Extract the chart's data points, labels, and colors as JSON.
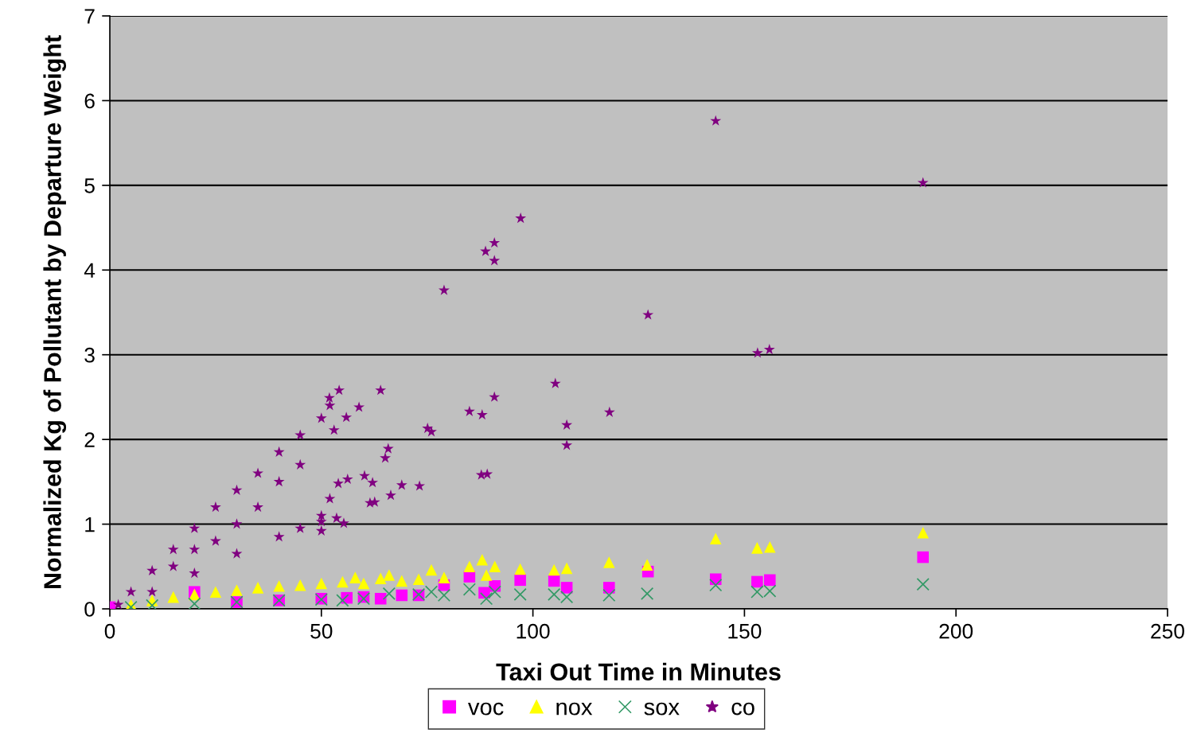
{
  "chart_data": {
    "type": "scatter",
    "xlabel": "Taxi Out Time in Minutes",
    "ylabel": "Normalized Kg of Pollutant by Departure Weight",
    "xlim": [
      0,
      250
    ],
    "xticks": [
      0,
      50,
      100,
      150,
      200,
      250
    ],
    "ylim": [
      0,
      7
    ],
    "yticks": [
      0,
      1,
      2,
      3,
      4,
      5,
      6,
      7
    ],
    "grid": "y",
    "legend": "bottom",
    "series": [
      {
        "name": "voc",
        "color": "#ff00ff",
        "marker": "square",
        "x": [
          0,
          5,
          10,
          15,
          20,
          30,
          40,
          50,
          56,
          60,
          64,
          69,
          73,
          79,
          85,
          88.5,
          91,
          97,
          105,
          108,
          118,
          127.2,
          143.2,
          153,
          156,
          192.2
        ],
        "values": [
          0.02,
          null,
          null,
          null,
          0.2,
          0.08,
          0.1,
          0.12,
          0.13,
          0.14,
          0.12,
          0.16,
          0.16,
          0.28,
          0.38,
          0.19,
          0.27,
          0.34,
          0.33,
          0.25,
          0.25,
          0.44,
          0.35,
          0.32,
          0.34,
          0.61
        ]
      },
      {
        "name": "nox",
        "color": "#ffff00",
        "marker": "triangle",
        "x": [
          5,
          10,
          15,
          20,
          25,
          30,
          35,
          40,
          45,
          50,
          55,
          58,
          60,
          64,
          66,
          69,
          73,
          76,
          79,
          85,
          88,
          89,
          91,
          97,
          105,
          108,
          118,
          127,
          143.2,
          153,
          156,
          192.2
        ],
        "values": [
          0.05,
          0.1,
          0.14,
          0.17,
          0.2,
          0.22,
          0.25,
          0.27,
          0.28,
          0.3,
          0.32,
          0.37,
          0.3,
          0.36,
          0.4,
          0.33,
          0.35,
          0.46,
          0.37,
          0.5,
          0.58,
          0.4,
          0.5,
          0.47,
          0.46,
          0.48,
          0.55,
          0.52,
          0.83,
          0.72,
          0.73,
          0.9
        ]
      },
      {
        "name": "sox",
        "color": "#339966",
        "marker": "cross",
        "x": [
          5,
          10,
          20,
          30,
          40,
          50,
          55,
          60,
          66,
          73,
          76,
          79,
          85,
          89,
          91,
          97,
          105,
          108,
          118,
          127,
          143.2,
          153,
          156,
          192.2
        ],
        "values": [
          0.02,
          0.04,
          0.06,
          0.08,
          0.1,
          0.11,
          0.1,
          0.12,
          0.18,
          0.17,
          0.2,
          0.16,
          0.23,
          0.12,
          0.2,
          0.17,
          0.17,
          0.14,
          0.16,
          0.18,
          0.28,
          0.2,
          0.21,
          0.29
        ]
      },
      {
        "name": "co",
        "color": "#800080",
        "marker": "star",
        "x": [
          2,
          5,
          10,
          15,
          20,
          25,
          30,
          35,
          40,
          45,
          50,
          52,
          10,
          20,
          30,
          40,
          45,
          50,
          52,
          15,
          20,
          25,
          30,
          35,
          40,
          45,
          50.0,
          50.0,
          53.6,
          55.3,
          54.0,
          56.2,
          53.0,
          51.9,
          54.2,
          55.9,
          58.9,
          60.2,
          62.1,
          61.5,
          62.6,
          66.4,
          69.0,
          73.2,
          65.1,
          65.8,
          64.0,
          75.1,
          76.0,
          79.0,
          85.0,
          87.8,
          88.0,
          88.8,
          89.2,
          90.9,
          90.9,
          90.9,
          97.1,
          105.3,
          108.0,
          108.0,
          118.1,
          127.2,
          143.2,
          153.1,
          155.9,
          192.2
        ],
        "values": [
          0.05,
          0.2,
          0.45,
          0.7,
          0.95,
          1.2,
          1.4,
          1.6,
          1.85,
          2.05,
          2.25,
          2.4,
          0.2,
          0.42,
          0.65,
          0.85,
          0.95,
          1.1,
          1.3,
          0.5,
          0.7,
          0.8,
          1.0,
          1.2,
          1.5,
          1.7,
          0.92,
          1.03,
          1.07,
          1.01,
          1.48,
          1.53,
          2.11,
          2.49,
          2.58,
          2.26,
          2.38,
          1.57,
          1.49,
          1.25,
          1.26,
          1.34,
          1.46,
          1.45,
          1.78,
          1.89,
          2.58,
          2.13,
          2.09,
          3.76,
          2.33,
          1.58,
          2.29,
          4.22,
          1.59,
          4.32,
          4.11,
          2.5,
          4.61,
          2.66,
          2.17,
          1.93,
          2.32,
          3.47,
          5.76,
          3.02,
          3.06,
          5.03
        ]
      }
    ]
  }
}
